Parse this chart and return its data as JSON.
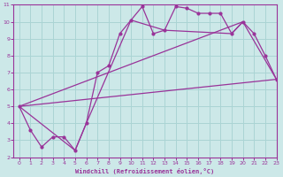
{
  "xlabel": "Windchill (Refroidissement éolien,°C)",
  "bg_color": "#cce8e8",
  "grid_color": "#aad4d4",
  "line_color": "#993399",
  "spine_color": "#993399",
  "xlim": [
    -0.5,
    23
  ],
  "ylim": [
    2,
    11
  ],
  "xticks": [
    0,
    1,
    2,
    3,
    4,
    5,
    6,
    7,
    8,
    9,
    10,
    11,
    12,
    13,
    14,
    15,
    16,
    17,
    18,
    19,
    20,
    21,
    22,
    23
  ],
  "yticks": [
    2,
    3,
    4,
    5,
    6,
    7,
    8,
    9,
    10,
    11
  ],
  "line1_x": [
    0,
    1,
    2,
    3,
    4,
    5,
    6,
    7,
    8,
    9,
    10,
    11,
    12,
    13,
    14,
    15,
    16,
    17,
    18,
    19,
    20,
    21,
    22,
    23
  ],
  "line1_y": [
    5.0,
    3.6,
    2.6,
    3.2,
    3.2,
    2.4,
    4.0,
    7.0,
    7.4,
    9.3,
    10.1,
    10.9,
    9.3,
    9.5,
    10.9,
    10.8,
    10.5,
    10.5,
    10.5,
    9.3,
    10.0,
    9.3,
    8.0,
    6.6
  ],
  "line2_x": [
    0,
    5,
    6,
    10,
    13,
    19,
    20,
    23
  ],
  "line2_y": [
    5.0,
    2.4,
    4.0,
    10.1,
    9.5,
    9.3,
    10.0,
    6.6
  ],
  "line3_x": [
    0,
    23
  ],
  "line3_y": [
    5.0,
    6.6
  ],
  "line4_x": [
    0,
    20
  ],
  "line4_y": [
    5.0,
    10.0
  ]
}
